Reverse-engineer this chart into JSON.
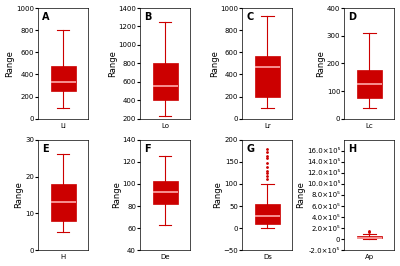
{
  "panels": [
    {
      "label": "A",
      "xlabel": "Li",
      "ylim": [
        0,
        1000
      ],
      "yticks": [
        0,
        200,
        400,
        600,
        800,
        1000
      ],
      "whislo": 100,
      "q1": 250,
      "med": 330,
      "q3": 480,
      "whishi": 800,
      "fliers": []
    },
    {
      "label": "B",
      "xlabel": "Lo",
      "ylim": [
        200,
        1400
      ],
      "yticks": [
        200,
        400,
        600,
        800,
        1000,
        1200,
        1400
      ],
      "whislo": 230,
      "q1": 400,
      "med": 550,
      "q3": 800,
      "whishi": 1250,
      "fliers": []
    },
    {
      "label": "C",
      "xlabel": "Lr",
      "ylim": [
        0,
        1000
      ],
      "yticks": [
        0,
        200,
        400,
        600,
        800,
        1000
      ],
      "whislo": 100,
      "q1": 200,
      "med": 470,
      "q3": 570,
      "whishi": 930,
      "fliers": []
    },
    {
      "label": "D",
      "xlabel": "Lc",
      "ylim": [
        0,
        400
      ],
      "yticks": [
        0,
        100,
        200,
        300,
        400
      ],
      "whislo": 40,
      "q1": 75,
      "med": 125,
      "q3": 175,
      "whishi": 310,
      "fliers": []
    },
    {
      "label": "E",
      "xlabel": "H",
      "ylim": [
        0,
        30
      ],
      "yticks": [
        0,
        10,
        20,
        30
      ],
      "whislo": 5,
      "q1": 8,
      "med": 13,
      "q3": 18,
      "whishi": 26,
      "fliers": []
    },
    {
      "label": "F",
      "xlabel": "De",
      "ylim": [
        40,
        140
      ],
      "yticks": [
        40,
        60,
        80,
        100,
        120,
        140
      ],
      "whislo": 63,
      "q1": 82,
      "med": 93,
      "q3": 103,
      "whishi": 125,
      "fliers": []
    },
    {
      "label": "G",
      "xlabel": "Ds",
      "ylim": [
        -50,
        200
      ],
      "yticks": [
        -50,
        0,
        50,
        100,
        150,
        200
      ],
      "whislo": 0,
      "q1": 10,
      "med": 28,
      "q3": 55,
      "whishi": 100,
      "fliers": [
        110,
        118,
        125,
        130,
        138,
        148,
        158,
        163,
        172,
        180
      ]
    },
    {
      "label": "H",
      "xlabel": "Ap",
      "ylim": [
        -200000,
        1800000
      ],
      "yticks": [
        -200000,
        0,
        200000,
        400000,
        600000,
        800000,
        1000000,
        1200000,
        1400000,
        1600000
      ],
      "whislo": 8000,
      "q1": 18000,
      "med": 28000,
      "q3": 58000,
      "whishi": 90000,
      "fliers": [
        140000,
        130000
      ]
    }
  ],
  "box_color": "#cc0000",
  "median_color": "#ffaaaa",
  "whisker_color": "#cc0000",
  "cap_color": "#cc0000",
  "flier_color": "#cc0000",
  "fig_bg": "#ffffff",
  "panel_label_fontsize": 7,
  "axis_label_fontsize": 6,
  "tick_fontsize": 5
}
